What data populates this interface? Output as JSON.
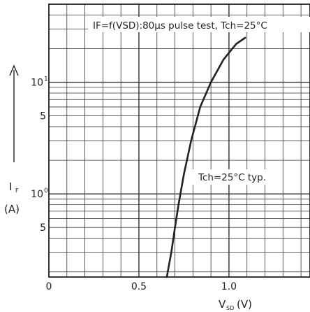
{
  "chart_data": {
    "type": "line",
    "title": "IF=f(VSD):80µs pulse test, Tch=25°C",
    "annotation": "Tch=25°C typ.",
    "xlabel": {
      "main": "V",
      "sub": "SD",
      "unit": "(V)"
    },
    "ylabel": {
      "main": "I",
      "sub": "F",
      "unit": "(A)"
    },
    "x_ticks": [
      "0",
      "0.5",
      "1.0"
    ],
    "y_ticks": [
      {
        "mantissa": "10",
        "exp": "1"
      },
      {
        "mantissa": "5",
        "exp": ""
      },
      {
        "mantissa": "10",
        "exp": "0"
      },
      {
        "mantissa": "5",
        "exp": ""
      }
    ],
    "x_scale": "linear",
    "y_scale": "log",
    "xlim": [
      0,
      1.45
    ],
    "ylim": [
      0.18,
      50
    ],
    "grid": true,
    "series": [
      {
        "x": [
          0.655,
          0.68,
          0.7,
          0.72,
          0.75,
          0.79,
          0.84,
          0.9,
          0.97,
          1.04,
          1.09
        ],
        "y": [
          0.18,
          0.3,
          0.5,
          0.8,
          1.5,
          3.0,
          6.0,
          10.0,
          16.0,
          22.0,
          25.0
        ]
      }
    ]
  }
}
